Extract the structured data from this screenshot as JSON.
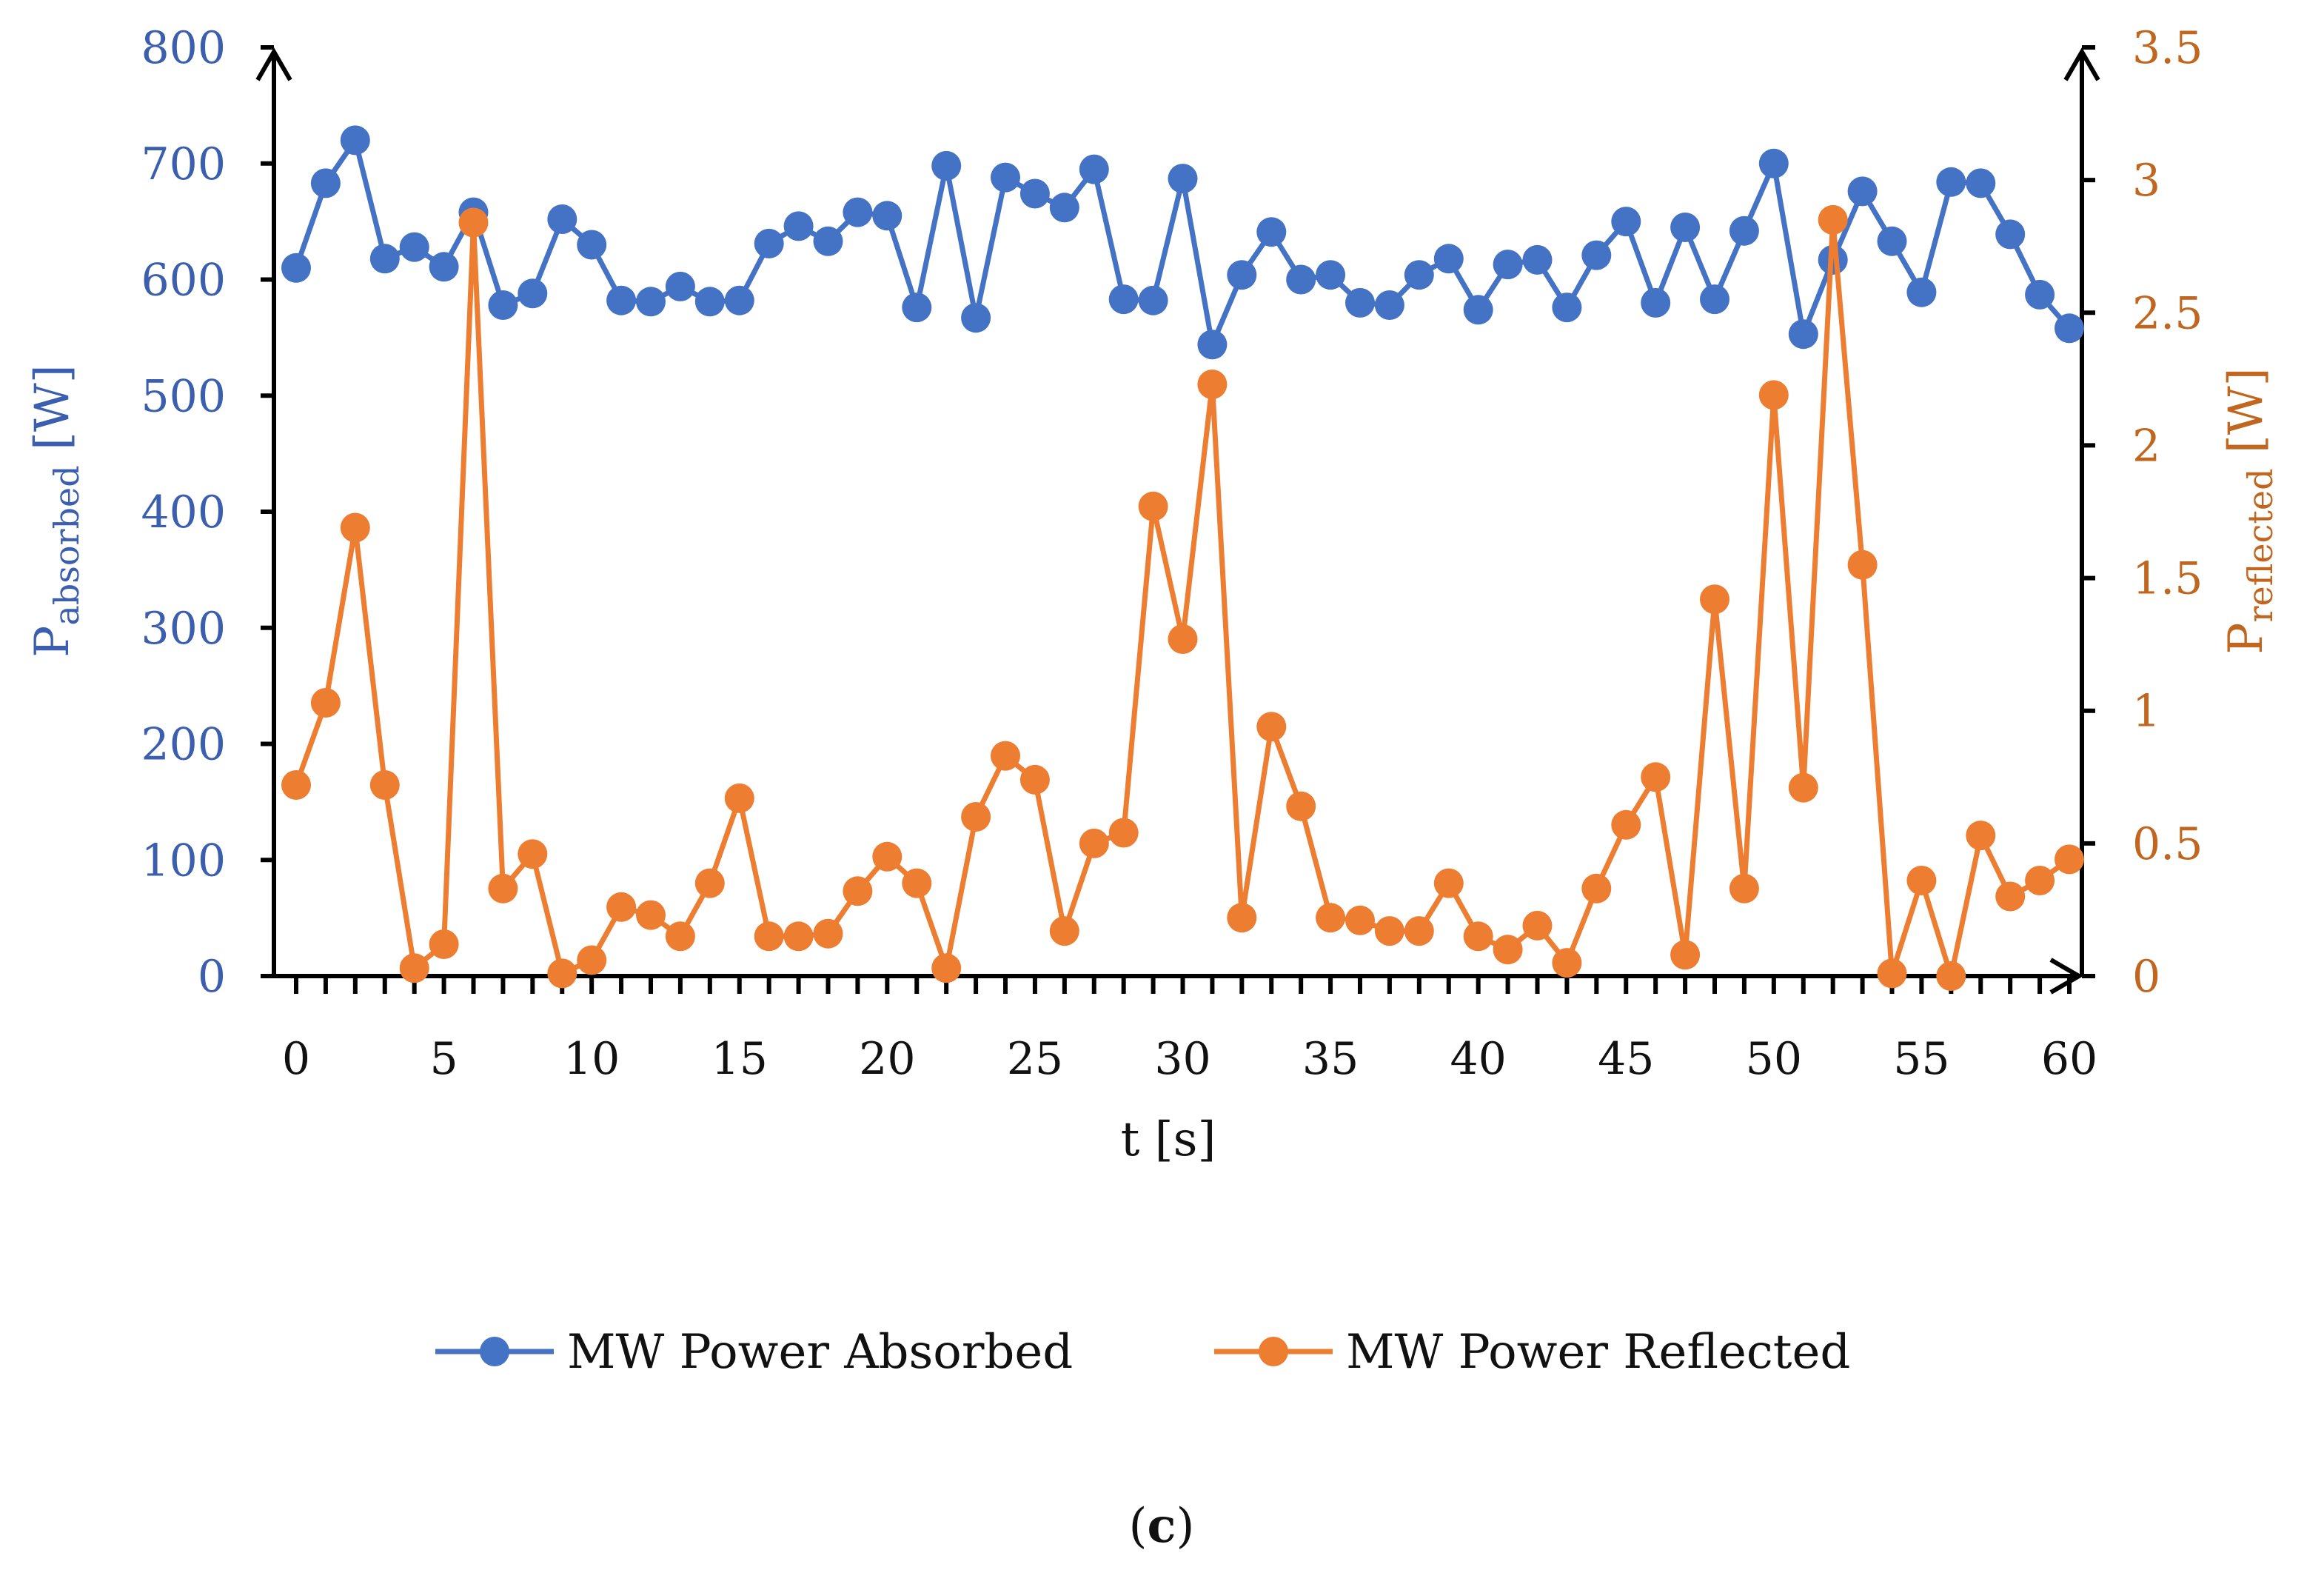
{
  "chart_data": {
    "type": "line",
    "caption_open": "(",
    "caption_letter": "c",
    "caption_close": ")",
    "x_axis": {
      "label": "t [s]",
      "range": [
        0,
        60
      ],
      "tick_labels": [
        "0",
        "5",
        "10",
        "15",
        "20",
        "25",
        "30",
        "35",
        "40",
        "45",
        "50",
        "55",
        "60"
      ]
    },
    "y_axis_left": {
      "label_main": "P",
      "label_sub": "absorbed",
      "label_unit": " [W]",
      "range": [
        0,
        800
      ],
      "tick_labels": [
        "0",
        "100",
        "200",
        "300",
        "400",
        "500",
        "600",
        "700",
        "800"
      ],
      "color": "#3b5fae"
    },
    "y_axis_right": {
      "label_main": "P",
      "label_sub": "reflected",
      "label_unit": " [W]",
      "range": [
        0,
        3.5
      ],
      "tick_labels": [
        "0",
        "0.5",
        "1",
        "1.5",
        "2",
        "2.5",
        "3",
        "3.5"
      ],
      "color": "#c0661e"
    },
    "x": [
      0,
      1,
      2,
      3,
      4,
      5,
      6,
      7,
      8,
      9,
      10,
      11,
      12,
      13,
      14,
      15,
      16,
      17,
      18,
      19,
      20,
      21,
      22,
      23,
      24,
      25,
      26,
      27,
      28,
      29,
      30,
      31,
      32,
      33,
      34,
      35,
      36,
      37,
      38,
      39,
      40,
      41,
      42,
      43,
      44,
      45,
      46,
      47,
      48,
      49,
      50,
      51,
      52,
      53,
      54,
      55,
      56,
      57,
      58,
      59,
      60
    ],
    "series": [
      {
        "name": "MW Power Absorbed",
        "axis": "left",
        "color": "#4472c4",
        "values": [
          610,
          683,
          720,
          618,
          628,
          611,
          658,
          578,
          588,
          652,
          630,
          582,
          581,
          594,
          581,
          582,
          631,
          646,
          633,
          658,
          655,
          576,
          698,
          567,
          688,
          674,
          662,
          695,
          583,
          582,
          687,
          544,
          604,
          641,
          600,
          604,
          580,
          578,
          604,
          618,
          574,
          613,
          617,
          576,
          621,
          650,
          580,
          645,
          583,
          642,
          700,
          553,
          617,
          676,
          633,
          589,
          684,
          683,
          639,
          587,
          558
        ]
      },
      {
        "name": "MW Power Reflected",
        "axis": "right",
        "color": "#ed7d31",
        "values": [
          0.72,
          1.03,
          1.69,
          0.72,
          0.03,
          0.12,
          2.84,
          0.33,
          0.46,
          0.01,
          0.06,
          0.26,
          0.23,
          0.15,
          0.35,
          0.67,
          0.15,
          0.15,
          0.16,
          0.32,
          0.45,
          0.35,
          0.03,
          0.6,
          0.83,
          0.74,
          0.17,
          0.5,
          0.54,
          1.77,
          1.27,
          2.23,
          0.22,
          0.94,
          0.64,
          0.22,
          0.21,
          0.17,
          0.17,
          0.35,
          0.15,
          0.1,
          0.19,
          0.05,
          0.33,
          0.57,
          0.75,
          0.08,
          1.42,
          0.33,
          2.19,
          0.71,
          2.85,
          1.55,
          0.01,
          0.36,
          0.0,
          0.53,
          0.3,
          0.36,
          0.44
        ]
      }
    ],
    "legend_position": "bottom-center"
  }
}
